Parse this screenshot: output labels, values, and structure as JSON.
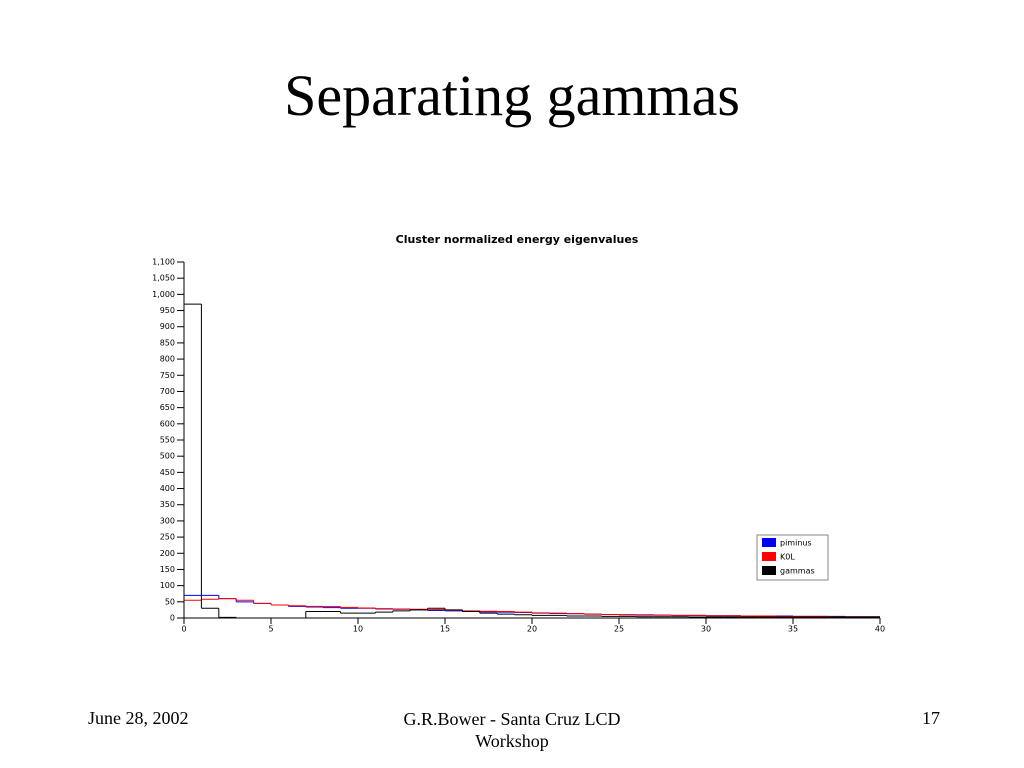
{
  "slide": {
    "title": "Separating gammas",
    "footer_left": "June 28, 2002",
    "footer_center": "G.R.Bower - Santa Cruz LCD Workshop",
    "footer_right": "17"
  },
  "chart_data": {
    "type": "histogram",
    "title": "Cluster normalized energy eigenvalues",
    "bins": [
      0,
      1,
      2,
      3,
      4,
      5,
      6,
      7,
      8,
      9,
      10,
      11,
      12,
      13,
      14,
      15,
      16,
      17,
      18,
      19,
      20,
      21,
      22,
      23,
      24,
      25,
      26,
      27,
      28,
      29,
      30,
      31,
      32,
      33,
      34,
      35,
      36,
      37,
      38,
      39,
      40
    ],
    "series": [
      {
        "name": "piminus",
        "color": "#0000ff",
        "values": [
          70,
          70,
          60,
          50,
          45,
          40,
          36,
          34,
          32,
          30,
          30,
          28,
          27,
          25,
          23,
          22,
          20,
          19,
          18,
          17,
          15,
          14,
          13,
          12,
          11,
          10,
          9,
          9,
          8,
          8,
          7,
          7,
          6,
          6,
          6,
          5,
          5,
          5,
          4,
          4
        ]
      },
      {
        "name": "K0L",
        "color": "#ff0000",
        "values": [
          55,
          58,
          60,
          55,
          45,
          40,
          38,
          36,
          35,
          33,
          31,
          29,
          28,
          27,
          26,
          24,
          22,
          21,
          20,
          18,
          16,
          15,
          14,
          12,
          11,
          10,
          10,
          9,
          8,
          8,
          7,
          7,
          6,
          6,
          5,
          5,
          5,
          4,
          4,
          4
        ]
      },
      {
        "name": "gammas",
        "color": "#000000",
        "values": [
          970,
          30,
          2,
          0,
          0,
          0,
          0,
          20,
          20,
          15,
          15,
          18,
          22,
          25,
          30,
          25,
          20,
          15,
          12,
          10,
          8,
          8,
          6,
          6,
          5,
          5,
          4,
          4,
          4,
          3,
          3,
          3,
          3,
          3,
          3,
          3,
          3,
          3,
          3,
          3
        ]
      }
    ],
    "xlim": [
      0,
      40
    ],
    "xticks": [
      0,
      5,
      10,
      15,
      20,
      25,
      30,
      35,
      40
    ],
    "ylim": [
      0,
      1100
    ],
    "yticks": [
      0,
      50,
      100,
      150,
      200,
      250,
      300,
      350,
      400,
      450,
      500,
      550,
      600,
      650,
      700,
      750,
      800,
      850,
      900,
      950,
      {
        "value": 1000,
        "label": "1,000"
      },
      {
        "value": 1050,
        "label": "1,050"
      },
      {
        "value": 1100,
        "label": "1,100"
      }
    ],
    "legend": "right"
  }
}
